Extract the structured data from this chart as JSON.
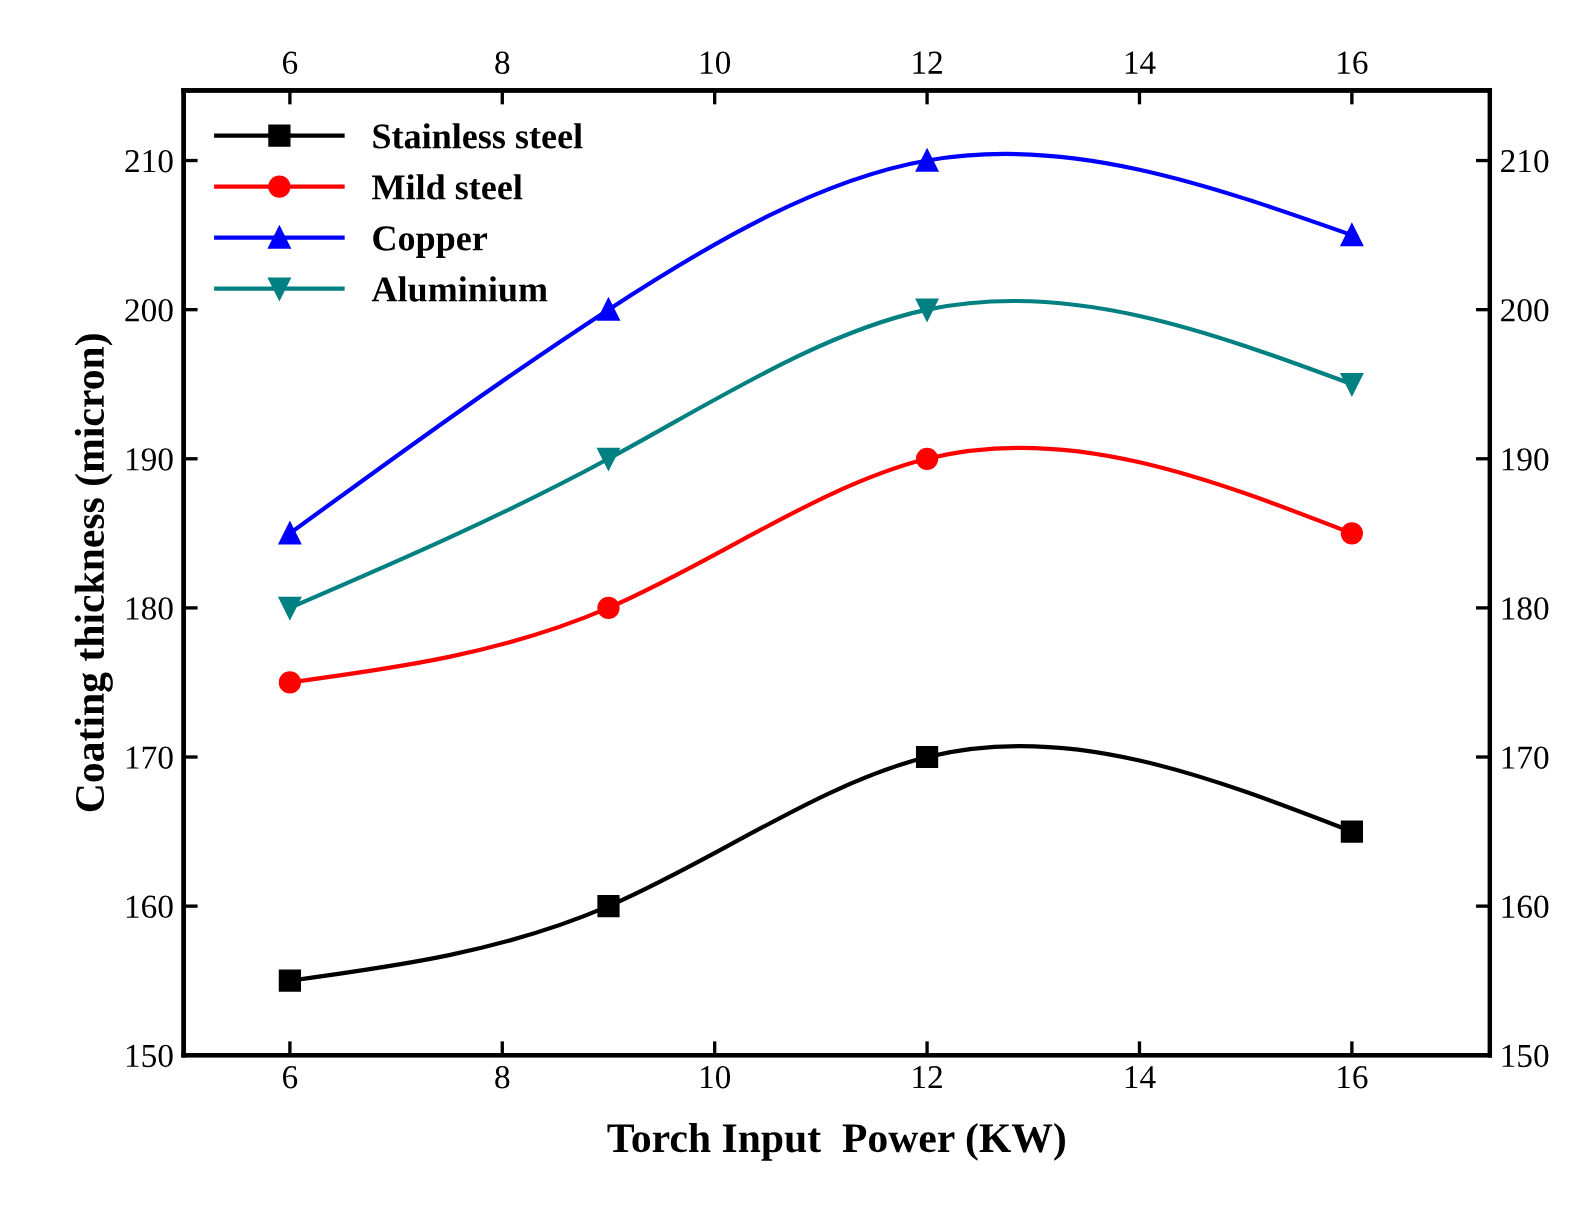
{
  "chart_data": {
    "type": "line",
    "xlabel": "Torch Input  Power (KW)",
    "ylabel": "Coating thickness (micron)",
    "x": [
      6,
      9,
      12,
      16
    ],
    "series": [
      {
        "name": "Stainless steel",
        "color": "#000000",
        "marker": "square",
        "values": [
          155,
          160,
          170,
          165
        ]
      },
      {
        "name": "Mild steel",
        "color": "#ff0000",
        "marker": "circle",
        "values": [
          175,
          180,
          190,
          185
        ]
      },
      {
        "name": "Copper",
        "color": "#0000ff",
        "marker": "triangle",
        "values": [
          185,
          200,
          210,
          205
        ]
      },
      {
        "name": "Aluminium",
        "color": "#008080",
        "marker": "triangle_down",
        "values": [
          180,
          190,
          200,
          195
        ]
      }
    ],
    "xlim": [
      5,
      17.3
    ],
    "xticks": [
      6,
      8,
      10,
      12,
      14,
      16
    ],
    "x2lim": [
      5,
      17.3
    ],
    "x2ticks": [
      6,
      8,
      10,
      12,
      14,
      16
    ],
    "ylim": [
      150,
      214.7
    ],
    "yticks": [
      150,
      160,
      170,
      180,
      190,
      200,
      210
    ],
    "y2lim": [
      150,
      214.7
    ],
    "y2ticks": [
      150,
      160,
      170,
      180,
      190,
      200,
      210
    ],
    "legend": "top left",
    "grid": false,
    "line_style": "solid"
  }
}
